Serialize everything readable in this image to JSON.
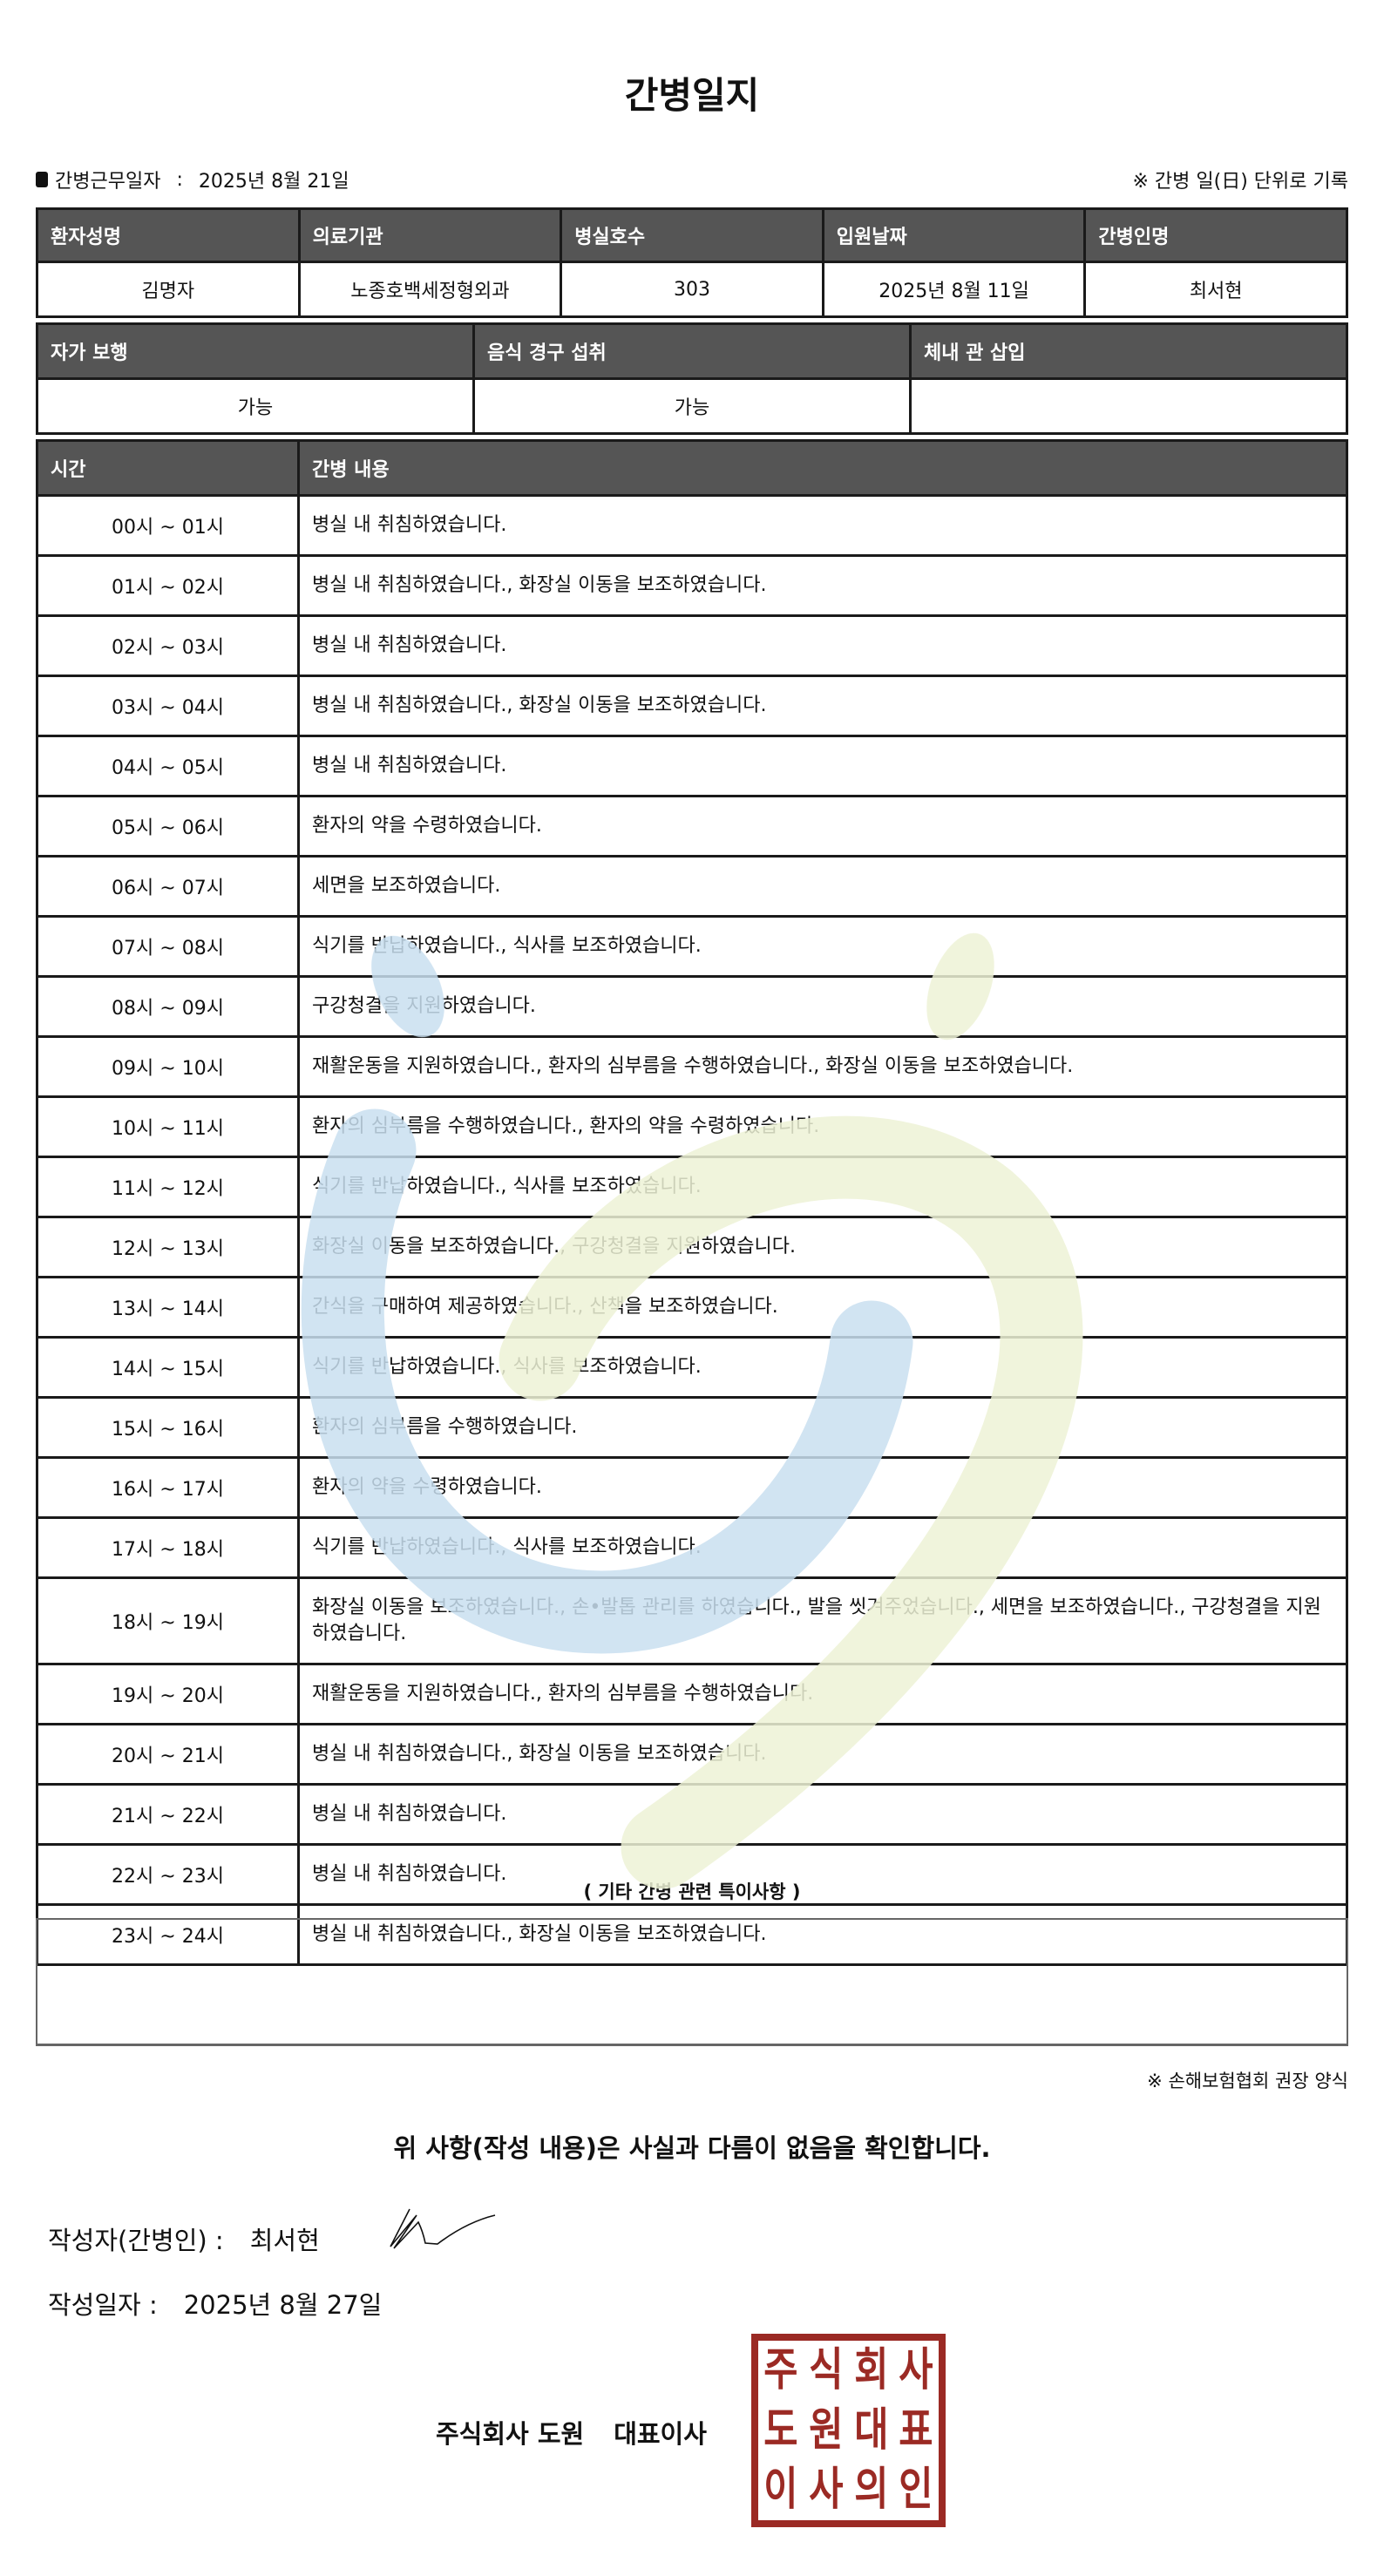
{
  "title": "간병일지",
  "info": {
    "work_date_label": "간병근무일자",
    "separator": ":",
    "work_date": "2025년 8월 21일",
    "note": "※ 간병 일(日) 단위로 기록"
  },
  "patient_table": {
    "headers": [
      "환자성명",
      "의료기관",
      "병실호수",
      "입원날짜",
      "간병인명"
    ],
    "values": [
      "김명자",
      "노종호백세정형외과",
      "303",
      "2025년 8월 11일",
      "최서현"
    ]
  },
  "status_table": {
    "headers": [
      "자가 보행",
      "음식 경구 섭취",
      "체내 관 삽입"
    ],
    "values": [
      "가능",
      "가능",
      ""
    ]
  },
  "log_table": {
    "headers": [
      "시간",
      "간병 내용"
    ],
    "rows": [
      {
        "time": "00시 ~ 01시",
        "content": "병실 내 취침하였습니다."
      },
      {
        "time": "01시 ~ 02시",
        "content": "병실 내 취침하였습니다., 화장실 이동을 보조하였습니다."
      },
      {
        "time": "02시 ~ 03시",
        "content": "병실 내 취침하였습니다."
      },
      {
        "time": "03시 ~ 04시",
        "content": "병실 내 취침하였습니다., 화장실 이동을 보조하였습니다."
      },
      {
        "time": "04시 ~ 05시",
        "content": "병실 내 취침하였습니다."
      },
      {
        "time": "05시 ~ 06시",
        "content": "환자의 약을 수령하였습니다."
      },
      {
        "time": "06시 ~ 07시",
        "content": "세면을 보조하였습니다."
      },
      {
        "time": "07시 ~ 08시",
        "content": "식기를 반납하였습니다., 식사를 보조하였습니다."
      },
      {
        "time": "08시 ~ 09시",
        "content": "구강청결을 지원하였습니다."
      },
      {
        "time": "09시 ~ 10시",
        "content": "재활운동을 지원하였습니다., 환자의 심부름을 수행하였습니다., 화장실 이동을 보조하였습니다."
      },
      {
        "time": "10시 ~ 11시",
        "content": "환자의 심부름을 수행하였습니다., 환자의 약을 수령하였습니다."
      },
      {
        "time": "11시 ~ 12시",
        "content": "식기를 반납하였습니다., 식사를 보조하였습니다."
      },
      {
        "time": "12시 ~ 13시",
        "content": "화장실 이동을 보조하였습니다., 구강청결을 지원하였습니다."
      },
      {
        "time": "13시 ~ 14시",
        "content": "간식을 구매하여 제공하였습니다., 산책을 보조하였습니다."
      },
      {
        "time": "14시 ~ 15시",
        "content": "식기를 반납하였습니다., 식사를 보조하였습니다."
      },
      {
        "time": "15시 ~ 16시",
        "content": "환자의 심부름을 수행하였습니다."
      },
      {
        "time": "16시 ~ 17시",
        "content": "환자의 약을 수령하였습니다."
      },
      {
        "time": "17시 ~ 18시",
        "content": "식기를 반납하였습니다., 식사를 보조하였습니다."
      },
      {
        "time": "18시 ~ 19시",
        "content": "화장실 이동을 보조하였습니다., 손•발톱 관리를 하였습니다., 발을 씻겨주었습니다., 세면을 보조하였습니다., 구강청결을 지원하였습니다."
      },
      {
        "time": "19시 ~ 20시",
        "content": "재활운동을 지원하였습니다., 환자의 심부름을 수행하였습니다."
      },
      {
        "time": "20시 ~ 21시",
        "content": "병실 내 취침하였습니다., 화장실 이동을 보조하였습니다."
      },
      {
        "time": "21시 ~ 22시",
        "content": "병실 내 취침하였습니다."
      },
      {
        "time": "22시 ~ 23시",
        "content": "병실 내 취침하였습니다."
      },
      {
        "time": "23시 ~ 24시",
        "content": "병실 내 취침하였습니다., 화장실 이동을 보조하였습니다."
      }
    ]
  },
  "special_notes": {
    "label": "( 기타 간병 관련 특이사항 )",
    "value": ""
  },
  "source_note": "※ 손해보험협회 권장 양식",
  "confirmation": "위 사항(작성 내용)은 사실과 다름이 없음을 확인합니다.",
  "writer": {
    "label": "작성자(간병인) :",
    "name": "최서현"
  },
  "written_date": {
    "label": "작성일자 :",
    "value": "2025년 8월 27일"
  },
  "company": {
    "name": "주식회사 도원",
    "title": "대표이사"
  },
  "seal": {
    "text": [
      "주",
      "식",
      "회",
      "사",
      "도",
      "원",
      "대",
      "표",
      "이",
      "사",
      "의",
      "인"
    ],
    "color": "#9b2a24"
  },
  "colors": {
    "header_bg": "#555555",
    "watermark_blue": "#c9dff0",
    "watermark_green": "#eef2d6"
  }
}
